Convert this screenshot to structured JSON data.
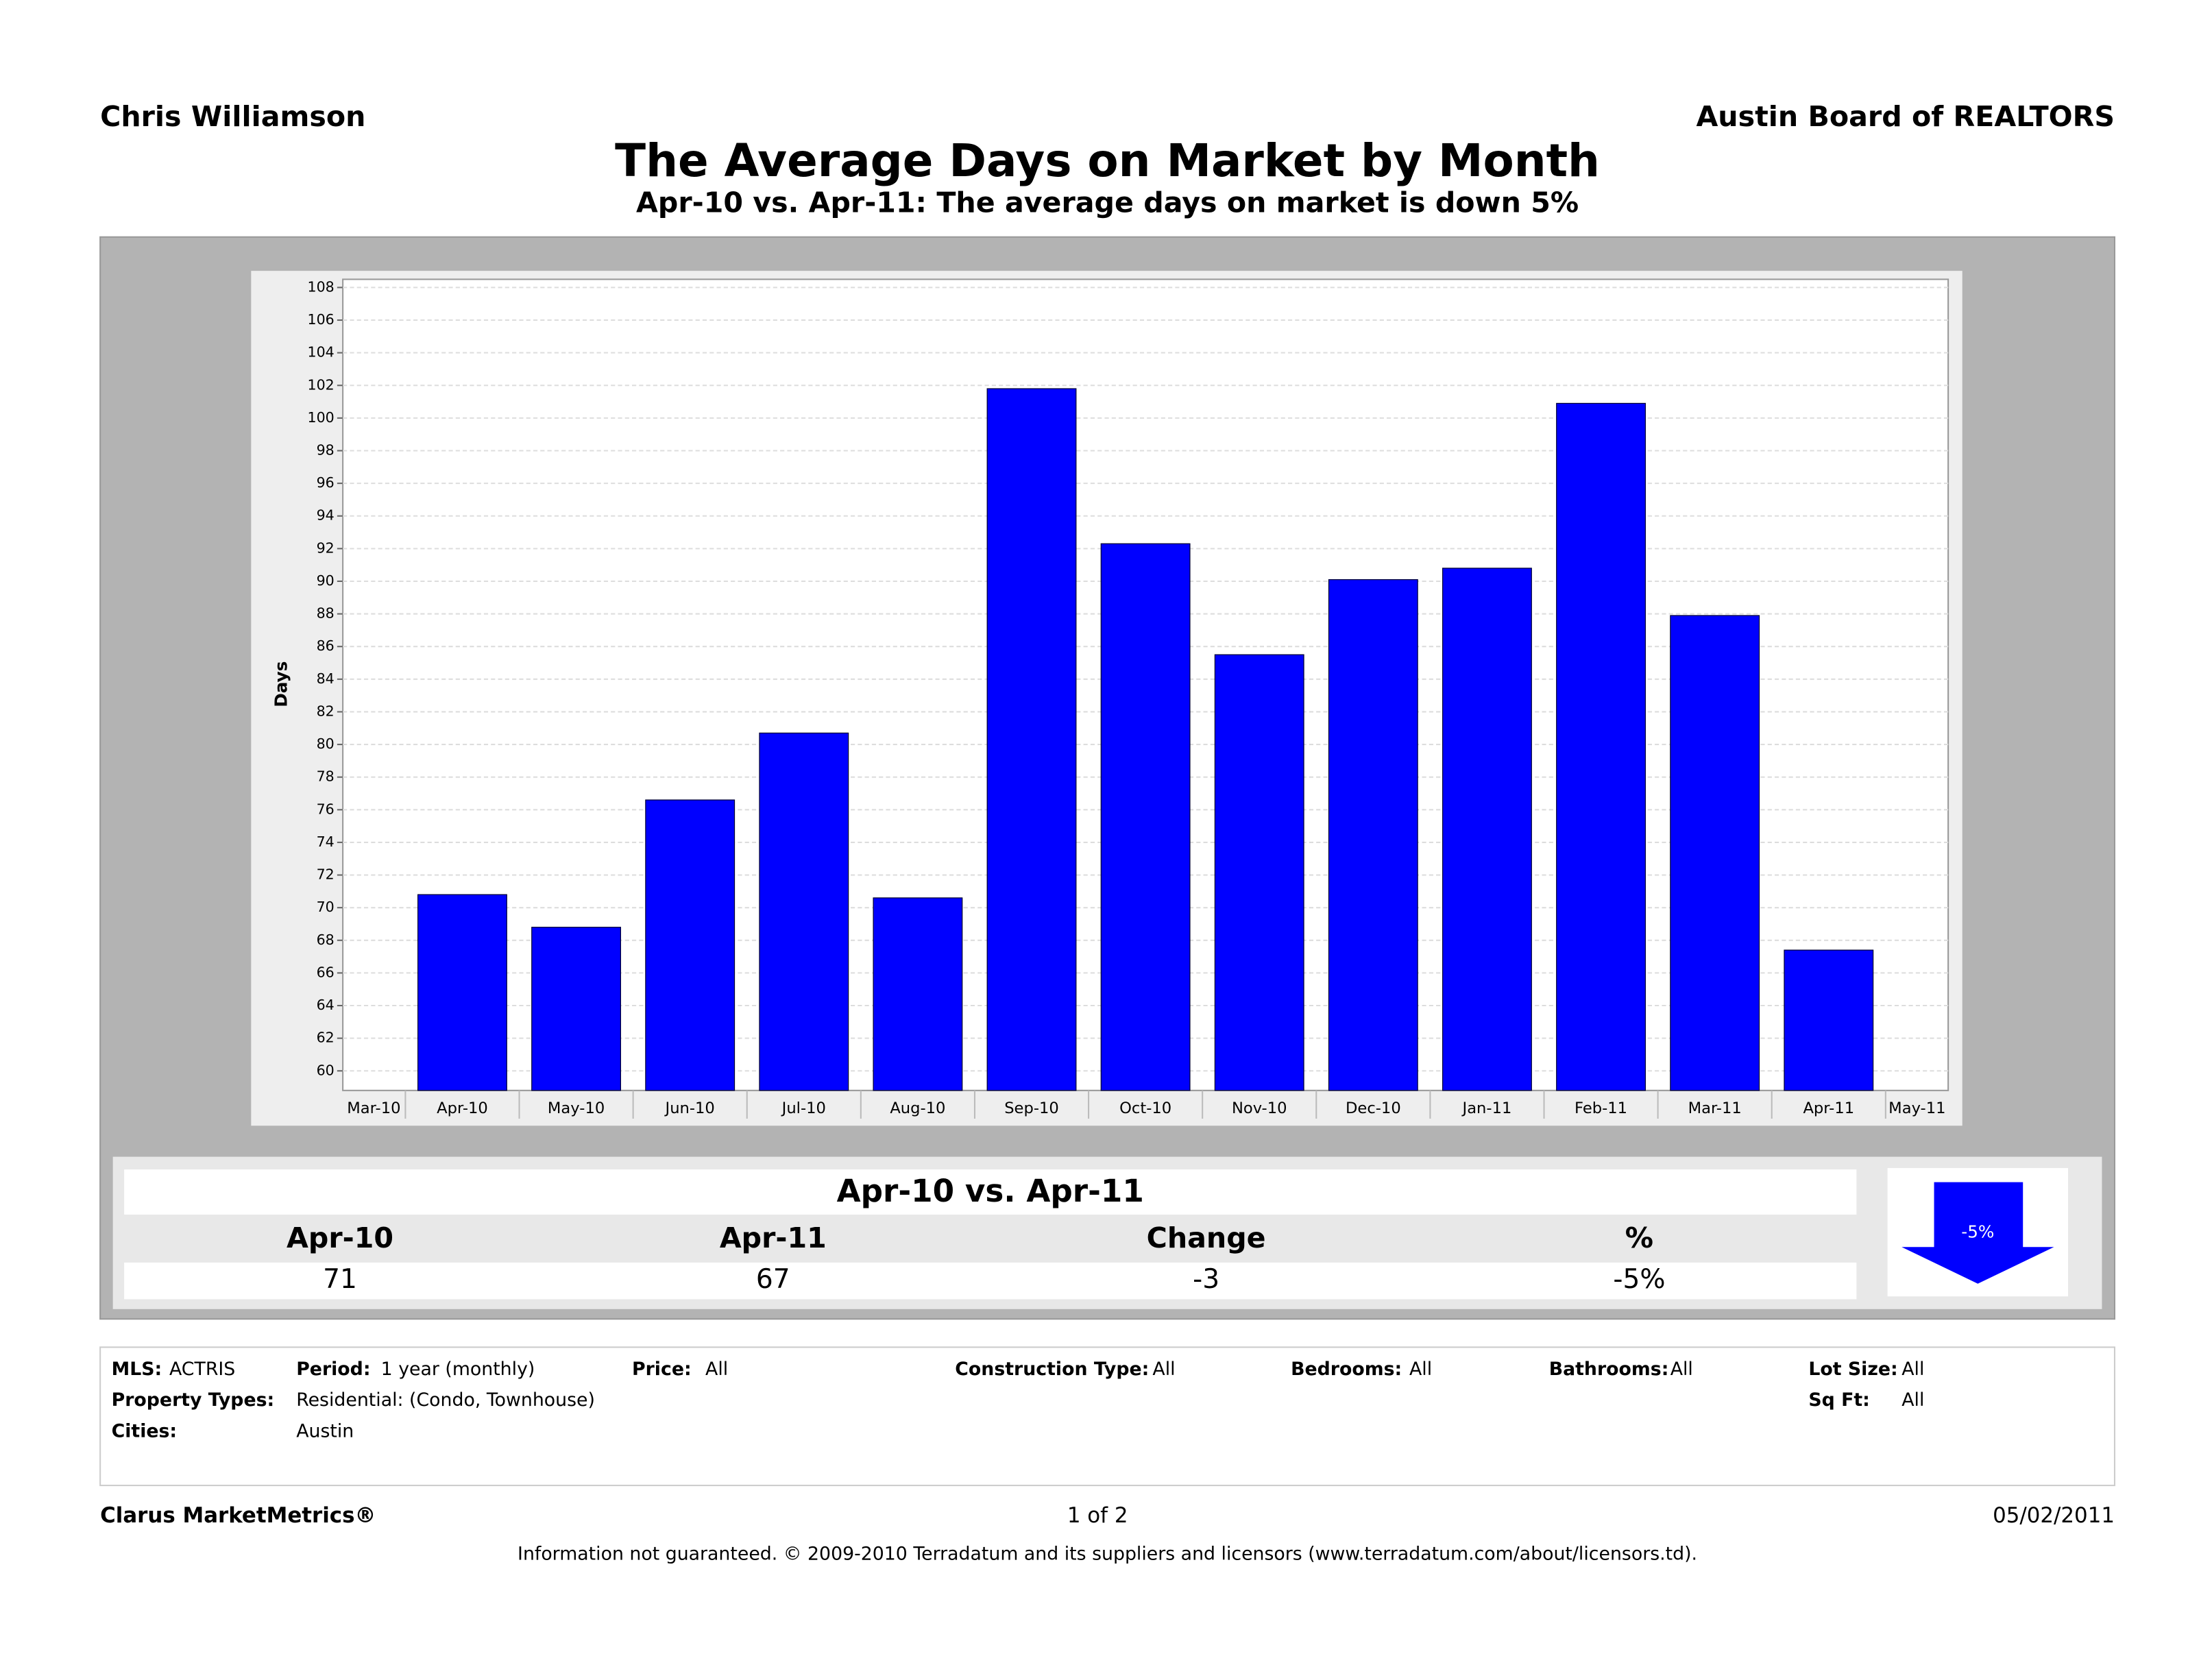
{
  "header": {
    "left": "Chris Williamson",
    "right": "Austin Board of REALTORS"
  },
  "chart_data": {
    "type": "bar",
    "title": "The Average Days on Market by Month",
    "subtitle": "Apr-10 vs. Apr-11:  The average days on market is down 5%",
    "ylabel": "Days",
    "categories": [
      "Mar-10",
      "Apr-10",
      "May-10",
      "Jun-10",
      "Jul-10",
      "Aug-10",
      "Sep-10",
      "Oct-10",
      "Nov-10",
      "Dec-10",
      "Jan-11",
      "Feb-11",
      "Mar-11",
      "Apr-11",
      "May-11"
    ],
    "values": [
      null,
      70.8,
      68.8,
      76.6,
      80.7,
      70.6,
      101.8,
      92.3,
      85.5,
      90.1,
      90.8,
      100.9,
      87.9,
      67.4,
      null
    ],
    "color": "#0000ff",
    "ylim": [
      58.8,
      108.5
    ],
    "yticks": [
      60,
      62,
      64,
      66,
      68,
      70,
      72,
      74,
      76,
      78,
      80,
      82,
      84,
      86,
      88,
      90,
      92,
      94,
      96,
      98,
      100,
      102,
      104,
      106,
      108
    ],
    "grid": true
  },
  "summary": {
    "title": "Apr-10 vs. Apr-11",
    "headers": [
      "Apr-10",
      "Apr-11",
      "Change",
      "%"
    ],
    "values": [
      "71",
      "67",
      "-3",
      "-5%"
    ],
    "badge": "-5%"
  },
  "filters": [
    {
      "label": "MLS:",
      "value": "ACTRIS"
    },
    {
      "label": "Period:",
      "value": "1 year (monthly)"
    },
    {
      "label": "Price:",
      "value": "All"
    },
    {
      "label": "Construction Type:",
      "value": "All"
    },
    {
      "label": "Bedrooms:",
      "value": "All"
    },
    {
      "label": "Bathrooms:",
      "value": "All"
    },
    {
      "label": "Lot Size:",
      "value": "All"
    },
    {
      "label": "Property Types:",
      "value": "Residential: (Condo, Townhouse)"
    },
    {
      "label": "Sq Ft:",
      "value": "All"
    },
    {
      "label": "Cities:",
      "value": "Austin"
    }
  ],
  "footer": {
    "brand": "Clarus MarketMetrics®",
    "page": "1 of 2",
    "date": "05/02/2011",
    "disclaimer": "Information not guaranteed.  © 2009-2010 Terradatum and its suppliers and licensors (www.terradatum.com/about/licensors.td)."
  }
}
